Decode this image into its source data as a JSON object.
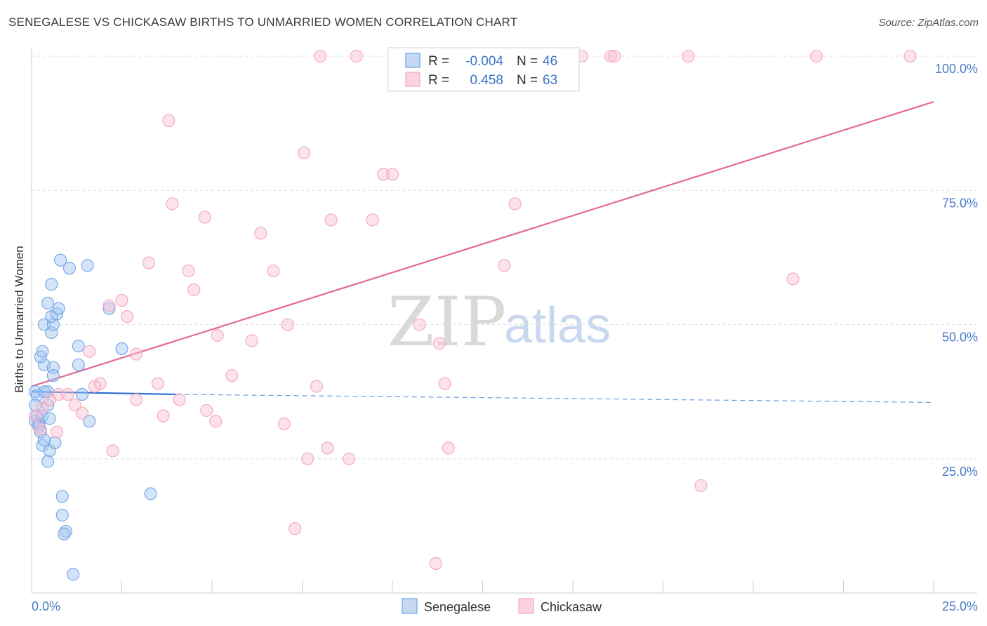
{
  "header": {
    "title": "SENEGALESE VS CHICKASAW BIRTHS TO UNMARRIED WOMEN CORRELATION CHART",
    "source": "Source: ZipAtlas.com"
  },
  "watermark": {
    "zip": "ZIP",
    "atlas": "atlas"
  },
  "legend": {
    "rows": [
      {
        "r_label": "R =",
        "r_value": "-0.004",
        "n_label": "N =",
        "n_value": "46",
        "color": "#6fa3e8"
      },
      {
        "r_label": "R =",
        "r_value": "0.458",
        "n_label": "N =",
        "n_value": "63",
        "color": "#f4a6bf"
      }
    ]
  },
  "bottom_legend": [
    {
      "label": "Senegalese",
      "color": "#6fa3e8"
    },
    {
      "label": "Chickasaw",
      "color": "#f4a6bf"
    }
  ],
  "chart_data": {
    "type": "scatter",
    "title": "SENEGALESE VS CHICKASAW BIRTHS TO UNMARRIED WOMEN CORRELATION CHART",
    "xlabel": "",
    "ylabel": "Births to Unmarried Women",
    "xlim": [
      0,
      25
    ],
    "ylim": [
      0,
      102
    ],
    "x_tick_labels": [
      "0.0%",
      "25.0%"
    ],
    "y_ticks": [
      25,
      50,
      75,
      100
    ],
    "y_tick_labels": [
      "25.0%",
      "50.0%",
      "75.0%",
      "100.0%"
    ],
    "grid": true,
    "series": [
      {
        "name": "Senegalese",
        "color": "#6fa3e8",
        "trend": {
          "x": [
            0,
            4.0
          ],
          "y": [
            37.5,
            37.0
          ],
          "dashed_to_x": 25,
          "dashed_end_y": 35.5,
          "color": "#2f6fd0"
        },
        "points": [
          [
            0.1,
            37.5
          ],
          [
            0.15,
            36.8
          ],
          [
            0.1,
            35.0
          ],
          [
            0.15,
            33.0
          ],
          [
            0.1,
            32.0
          ],
          [
            0.2,
            31.5
          ],
          [
            0.3,
            33.0
          ],
          [
            0.2,
            31.0
          ],
          [
            0.25,
            30.0
          ],
          [
            0.3,
            27.5
          ],
          [
            0.35,
            28.5
          ],
          [
            0.5,
            26.5
          ],
          [
            0.45,
            24.5
          ],
          [
            0.65,
            28.0
          ],
          [
            0.5,
            32.5
          ],
          [
            0.45,
            37.5
          ],
          [
            0.35,
            42.5
          ],
          [
            0.25,
            44.0
          ],
          [
            0.3,
            45.0
          ],
          [
            0.6,
            42.0
          ],
          [
            0.6,
            40.5
          ],
          [
            0.35,
            50.0
          ],
          [
            0.55,
            48.5
          ],
          [
            0.6,
            50.0
          ],
          [
            0.55,
            51.5
          ],
          [
            0.7,
            52.0
          ],
          [
            0.45,
            54.0
          ],
          [
            0.75,
            53.0
          ],
          [
            0.55,
            57.5
          ],
          [
            0.8,
            62.0
          ],
          [
            1.05,
            60.5
          ],
          [
            1.55,
            61.0
          ],
          [
            2.15,
            53.0
          ],
          [
            1.3,
            46.0
          ],
          [
            1.3,
            42.5
          ],
          [
            2.5,
            45.5
          ],
          [
            1.4,
            37.0
          ],
          [
            1.6,
            32.0
          ],
          [
            0.85,
            18.0
          ],
          [
            0.85,
            14.5
          ],
          [
            0.95,
            11.5
          ],
          [
            0.9,
            11.0
          ],
          [
            1.15,
            3.5
          ],
          [
            3.3,
            18.5
          ],
          [
            0.35,
            37.5
          ],
          [
            0.45,
            35.0
          ]
        ]
      },
      {
        "name": "Chickasaw",
        "color": "#f4a6bf",
        "trend": {
          "x": [
            0,
            25
          ],
          "y": [
            38.5,
            91.5
          ],
          "color": "#e26a93"
        },
        "points": [
          [
            0.1,
            33.0
          ],
          [
            0.25,
            30.5
          ],
          [
            0.3,
            34.5
          ],
          [
            0.5,
            36.0
          ],
          [
            0.75,
            37.0
          ],
          [
            0.7,
            30.0
          ],
          [
            1.0,
            37.0
          ],
          [
            1.2,
            35.0
          ],
          [
            1.4,
            33.5
          ],
          [
            1.6,
            45.0
          ],
          [
            1.9,
            39.0
          ],
          [
            1.75,
            38.5
          ],
          [
            2.15,
            53.5
          ],
          [
            2.25,
            26.5
          ],
          [
            2.5,
            54.5
          ],
          [
            2.65,
            51.5
          ],
          [
            2.9,
            36.0
          ],
          [
            2.9,
            44.5
          ],
          [
            3.25,
            61.5
          ],
          [
            3.5,
            39.0
          ],
          [
            3.65,
            33.0
          ],
          [
            3.8,
            88.0
          ],
          [
            3.9,
            72.5
          ],
          [
            4.1,
            36.0
          ],
          [
            4.35,
            60.0
          ],
          [
            4.5,
            56.5
          ],
          [
            4.8,
            70.0
          ],
          [
            4.85,
            34.0
          ],
          [
            5.1,
            32.0
          ],
          [
            5.15,
            48.0
          ],
          [
            5.55,
            40.5
          ],
          [
            6.1,
            47.0
          ],
          [
            6.35,
            67.0
          ],
          [
            6.7,
            60.0
          ],
          [
            7.0,
            31.5
          ],
          [
            7.1,
            50.0
          ],
          [
            7.3,
            12.0
          ],
          [
            7.55,
            82.0
          ],
          [
            7.65,
            25.0
          ],
          [
            7.9,
            38.5
          ],
          [
            8.0,
            100.0
          ],
          [
            8.2,
            27.0
          ],
          [
            8.3,
            69.5
          ],
          [
            8.8,
            25.0
          ],
          [
            9.0,
            100.0
          ],
          [
            9.45,
            69.5
          ],
          [
            9.75,
            78.0
          ],
          [
            10.0,
            78.0
          ],
          [
            10.75,
            50.0
          ],
          [
            11.3,
            46.5
          ],
          [
            11.2,
            5.5
          ],
          [
            11.45,
            39.0
          ],
          [
            11.55,
            27.0
          ],
          [
            13.1,
            61.0
          ],
          [
            13.4,
            72.5
          ],
          [
            13.6,
            100.0
          ],
          [
            15.25,
            100.0
          ],
          [
            16.05,
            100.0
          ],
          [
            16.15,
            100.0
          ],
          [
            18.2,
            100.0
          ],
          [
            18.55,
            20.0
          ],
          [
            21.1,
            58.5
          ],
          [
            21.75,
            100.0
          ],
          [
            24.35,
            100.0
          ]
        ]
      }
    ]
  }
}
